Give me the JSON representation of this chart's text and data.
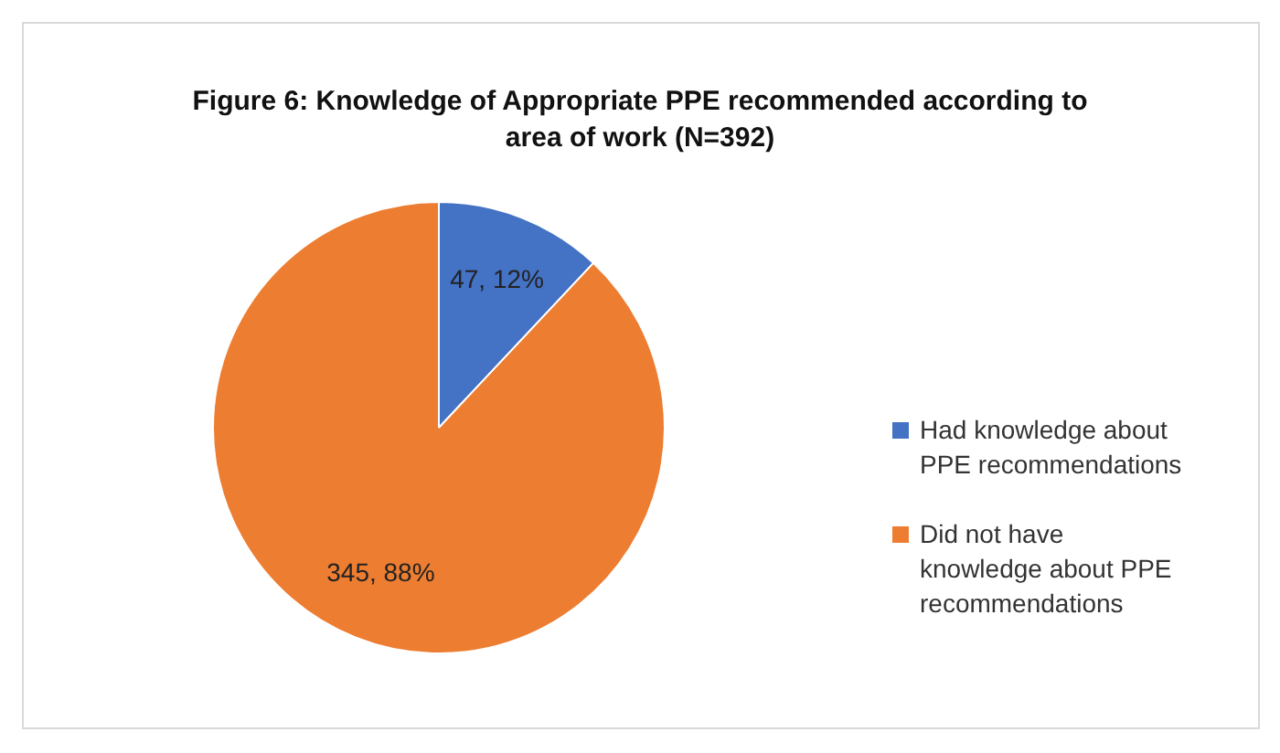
{
  "chart_data": {
    "type": "pie",
    "title": "Figure 6: Knowledge of Appropriate PPE recommended according to area of work (N=392)",
    "categories": [
      "Had knowledge about PPE recommendations",
      "Did not have knowledge about PPE recommendations"
    ],
    "values": [
      47,
      345
    ],
    "colors": [
      "#4472c4",
      "#ed7d31"
    ],
    "value_labels": [
      "47, 12%",
      "345, 88%"
    ],
    "legend": "right"
  }
}
